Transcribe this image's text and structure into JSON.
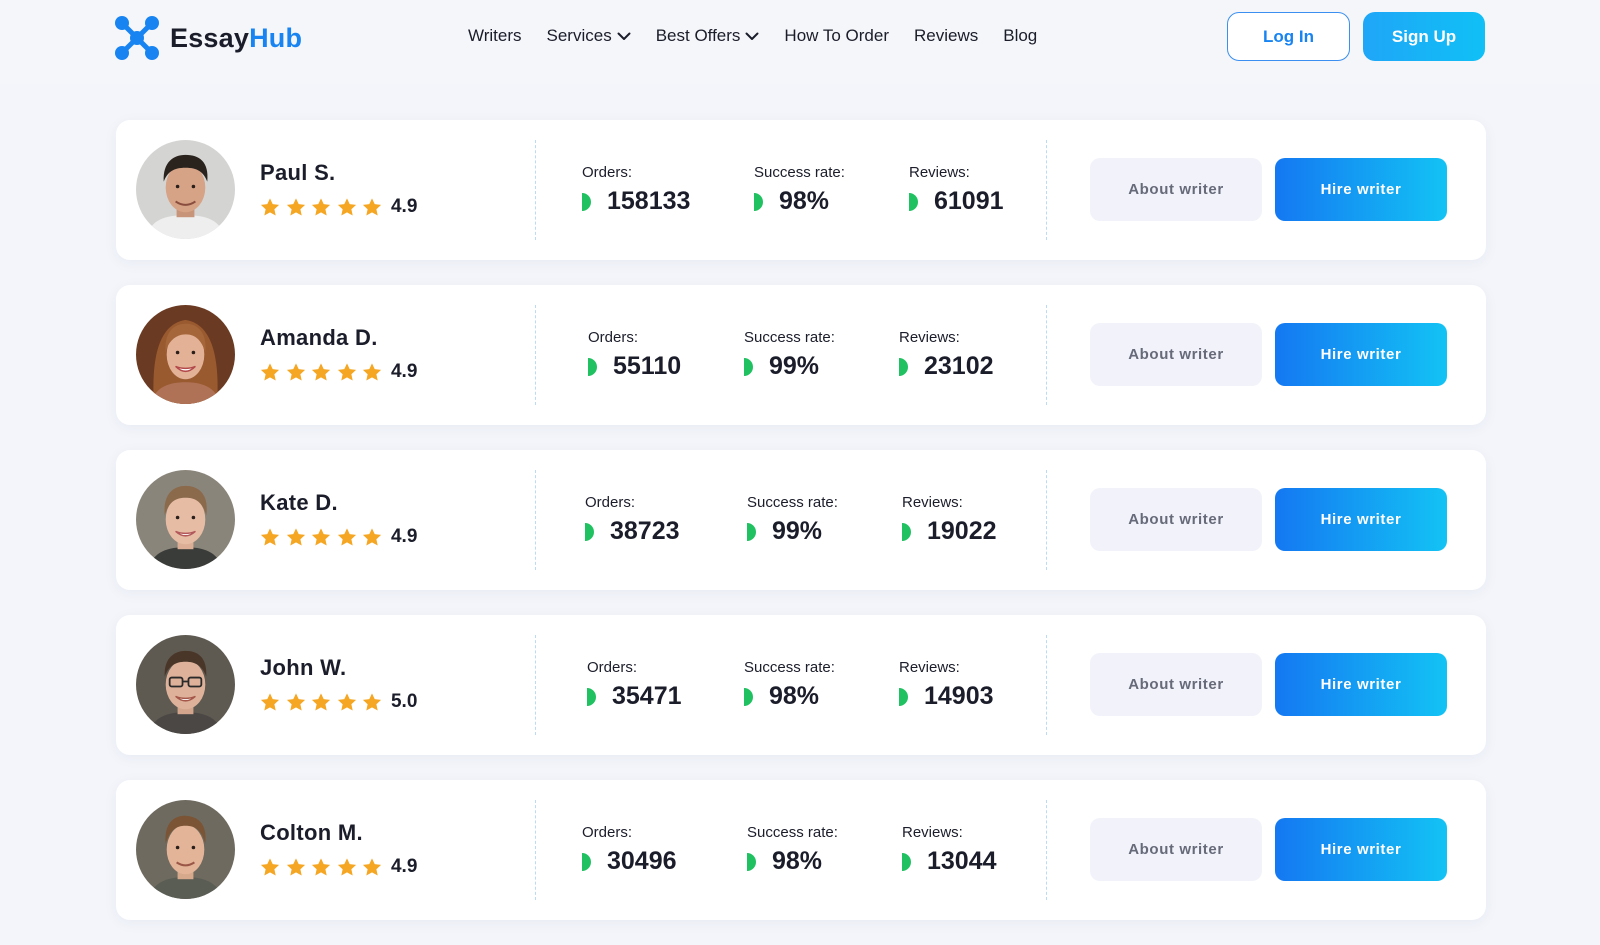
{
  "brand": {
    "name_part1": "Essay",
    "name_part2": "Hub",
    "logo_icon": "network-nodes-icon"
  },
  "nav": {
    "items": [
      {
        "label": "Writers",
        "dropdown": false
      },
      {
        "label": "Services",
        "dropdown": true
      },
      {
        "label": "Best Offers",
        "dropdown": true
      },
      {
        "label": "How To Order",
        "dropdown": false
      },
      {
        "label": "Reviews",
        "dropdown": false
      },
      {
        "label": "Blog",
        "dropdown": false
      }
    ],
    "login_label": "Log In",
    "signup_label": "Sign Up"
  },
  "labels": {
    "orders": "Orders:",
    "success": "Success rate:",
    "reviews": "Reviews:",
    "about_button": "About writer",
    "hire_button": "Hire writer"
  },
  "colors": {
    "accent": "#1784f2",
    "star": "#f5a623",
    "stat_indicator": "#1fc160",
    "about_button_bg": "#f2f3fa"
  },
  "writers": [
    {
      "name": "Paul S.",
      "rating": "4.9",
      "stars": 5,
      "orders": "158133",
      "success": "98%",
      "reviews": "61091"
    },
    {
      "name": "Amanda D.",
      "rating": "4.9",
      "stars": 5,
      "orders": "55110",
      "success": "99%",
      "reviews": "23102"
    },
    {
      "name": "Kate D.",
      "rating": "4.9",
      "stars": 5,
      "orders": "38723",
      "success": "99%",
      "reviews": "19022"
    },
    {
      "name": "John W.",
      "rating": "5.0",
      "stars": 5,
      "orders": "35471",
      "success": "98%",
      "reviews": "14903"
    },
    {
      "name": "Colton M.",
      "rating": "4.9",
      "stars": 5,
      "orders": "30496",
      "success": "98%",
      "reviews": "13044"
    }
  ]
}
